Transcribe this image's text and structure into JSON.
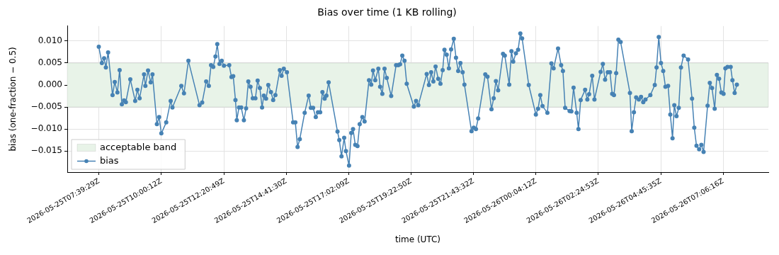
{
  "chart_data": {
    "type": "line",
    "title": "Bias over time (1 KB rolling)",
    "xlabel": "time (UTC)",
    "ylabel": "bias (one-fraction − 0.5)",
    "x": [
      "2026-05-25T07:39",
      "2026-05-25T07:46",
      "2026-05-25T07:51",
      "2026-05-25T07:55",
      "2026-05-25T08:00",
      "2026-05-25T08:10",
      "2026-05-25T08:15",
      "2026-05-25T08:21",
      "2026-05-25T08:26",
      "2026-05-25T08:31",
      "2026-05-25T08:36",
      "2026-05-25T08:40",
      "2026-05-25T08:50",
      "2026-05-25T09:01",
      "2026-05-25T09:06",
      "2026-05-25T09:11",
      "2026-05-25T09:21",
      "2026-05-25T09:24",
      "2026-05-25T09:30",
      "2026-05-25T09:36",
      "2026-05-25T09:40",
      "2026-05-25T09:50",
      "2026-05-25T09:55",
      "2026-05-25T10:00",
      "2026-05-25T10:11",
      "2026-05-25T10:21",
      "2026-05-25T10:25",
      "2026-05-25T10:45",
      "2026-05-25T10:51",
      "2026-05-25T11:01",
      "2026-05-25T11:26",
      "2026-05-25T11:32",
      "2026-05-25T11:41",
      "2026-05-25T11:47",
      "2026-05-25T11:52",
      "2026-05-25T11:57",
      "2026-05-25T12:02",
      "2026-05-25T12:06",
      "2026-05-25T12:11",
      "2026-05-25T12:16",
      "2026-05-25T12:21",
      "2026-05-25T12:33",
      "2026-05-25T12:38",
      "2026-05-25T12:42",
      "2026-05-25T12:47",
      "2026-05-25T12:50",
      "2026-05-25T12:55",
      "2026-05-25T13:00",
      "2026-05-25T13:06",
      "2026-05-25T13:11",
      "2026-05-25T13:16",
      "2026-05-25T13:21",
      "2026-05-25T13:26",
      "2026-05-25T13:32",
      "2026-05-25T13:37",
      "2026-05-25T13:42",
      "2026-05-25T13:47",
      "2026-05-25T13:51",
      "2026-05-25T13:56",
      "2026-05-25T14:01",
      "2026-05-25T14:07",
      "2026-05-25T14:12",
      "2026-05-25T14:17",
      "2026-05-25T14:27",
      "2026-05-25T14:31",
      "2026-05-25T14:36",
      "2026-05-25T14:43",
      "2026-05-25T14:57",
      "2026-05-25T15:02",
      "2026-05-25T15:07",
      "2026-05-25T15:12",
      "2026-05-25T15:23",
      "2026-05-25T15:32",
      "2026-05-25T15:37",
      "2026-05-25T15:42",
      "2026-05-25T15:48",
      "2026-05-25T15:53",
      "2026-05-25T15:58",
      "2026-05-25T16:03",
      "2026-05-25T16:08",
      "2026-05-25T16:12",
      "2026-05-25T16:17",
      "2026-05-25T16:37",
      "2026-05-25T16:41",
      "2026-05-25T16:46",
      "2026-05-25T16:52",
      "2026-05-25T16:56",
      "2026-05-25T17:03",
      "2026-05-25T17:08",
      "2026-05-25T17:12",
      "2026-05-25T17:17",
      "2026-05-25T17:22",
      "2026-05-25T17:27",
      "2026-05-25T17:33",
      "2026-05-25T17:38",
      "2026-05-25T17:48",
      "2026-05-25T17:53",
      "2026-05-25T17:57",
      "2026-05-25T18:02",
      "2026-05-25T18:09",
      "2026-05-25T18:13",
      "2026-05-25T18:18",
      "2026-05-25T18:23",
      "2026-05-25T18:28",
      "2026-05-25T18:38",
      "2026-05-25T18:49",
      "2026-05-25T18:54",
      "2026-05-25T18:58",
      "2026-05-25T19:03",
      "2026-05-25T19:08",
      "2026-05-25T19:13",
      "2026-05-25T19:29",
      "2026-05-25T19:34",
      "2026-05-25T19:39",
      "2026-05-25T19:58",
      "2026-05-25T20:03",
      "2026-05-25T20:08",
      "2026-05-25T20:13",
      "2026-05-25T20:18",
      "2026-05-25T20:24",
      "2026-05-25T20:29",
      "2026-05-25T20:34",
      "2026-05-25T20:38",
      "2026-05-25T20:43",
      "2026-05-25T20:48",
      "2026-05-25T20:53",
      "2026-05-25T20:59",
      "2026-05-25T21:04",
      "2026-05-25T21:09",
      "2026-05-25T21:14",
      "2026-05-25T21:19",
      "2026-05-25T21:23",
      "2026-05-25T21:39",
      "2026-05-25T21:44",
      "2026-05-25T21:49",
      "2026-05-25T21:54",
      "2026-05-25T22:10",
      "2026-05-25T22:15",
      "2026-05-25T22:24",
      "2026-05-25T22:29",
      "2026-05-25T22:34",
      "2026-05-25T22:39",
      "2026-05-25T22:50",
      "2026-05-25T22:54",
      "2026-05-25T23:04",
      "2026-05-25T23:09",
      "2026-05-25T23:13",
      "2026-05-25T23:19",
      "2026-05-25T23:24",
      "2026-05-25T23:29",
      "2026-05-25T23:33",
      "2026-05-25T23:48",
      "2026-05-26T00:04",
      "2026-05-26T00:09",
      "2026-05-26T00:14",
      "2026-05-26T00:19",
      "2026-05-26T00:30",
      "2026-05-26T00:39",
      "2026-05-26T00:44",
      "2026-05-26T00:54",
      "2026-05-26T01:01",
      "2026-05-26T01:05",
      "2026-05-26T01:10",
      "2026-05-26T01:20",
      "2026-05-26T01:24",
      "2026-05-26T01:29",
      "2026-05-26T01:36",
      "2026-05-26T01:40",
      "2026-05-26T01:45",
      "2026-05-26T01:55",
      "2026-05-26T02:00",
      "2026-05-26T02:04",
      "2026-05-26T02:11",
      "2026-05-26T02:16",
      "2026-05-26T02:30",
      "2026-05-26T02:35",
      "2026-05-26T02:40",
      "2026-05-26T02:46",
      "2026-05-26T02:51",
      "2026-05-26T02:56",
      "2026-05-26T03:00",
      "2026-05-26T03:05",
      "2026-05-26T03:10",
      "2026-05-26T03:15",
      "2026-05-26T03:36",
      "2026-05-26T03:40",
      "2026-05-26T03:45",
      "2026-05-26T03:50",
      "2026-05-26T03:56",
      "2026-05-26T04:01",
      "2026-05-26T04:06",
      "2026-05-26T04:11",
      "2026-05-26T04:22",
      "2026-05-26T04:32",
      "2026-05-26T04:36",
      "2026-05-26T04:41",
      "2026-05-26T04:46",
      "2026-05-26T04:51",
      "2026-05-26T04:56",
      "2026-05-26T05:02",
      "2026-05-26T05:07",
      "2026-05-26T05:12",
      "2026-05-26T05:16",
      "2026-05-26T05:21",
      "2026-05-26T05:26",
      "2026-05-26T05:31",
      "2026-05-26T05:37",
      "2026-05-26T05:47",
      "2026-05-26T05:56",
      "2026-05-26T06:01",
      "2026-05-26T06:06",
      "2026-05-26T06:12",
      "2026-05-26T06:17",
      "2026-05-26T06:22",
      "2026-05-26T06:31",
      "2026-05-26T06:36",
      "2026-05-26T06:41",
      "2026-05-26T06:47",
      "2026-05-26T06:52",
      "2026-05-26T06:57",
      "2026-05-26T07:02",
      "2026-05-26T07:07",
      "2026-05-26T07:11",
      "2026-05-26T07:16",
      "2026-05-26T07:23",
      "2026-05-26T07:27",
      "2026-05-26T07:32",
      "2026-05-26T07:37"
    ],
    "series": [
      {
        "name": "bias",
        "color": "#4682b4",
        "values": [
          0.0087,
          0.005,
          0.0061,
          0.004,
          0.0074,
          -0.0023,
          0.0007,
          -0.0017,
          0.0034,
          -0.0044,
          -0.0035,
          -0.0039,
          0.0013,
          -0.0036,
          -0.0011,
          -0.003,
          0.0024,
          -0.0002,
          0.0033,
          0.0006,
          0.0024,
          -0.0089,
          -0.0073,
          -0.011,
          -0.0085,
          -0.0036,
          -0.0051,
          -0.0002,
          -0.0019,
          0.0055,
          -0.0046,
          -0.004,
          0.0008,
          -0.0002,
          0.0045,
          0.0041,
          0.0065,
          0.0093,
          0.0048,
          0.0055,
          0.0044,
          0.0045,
          0.0018,
          0.002,
          -0.0034,
          -0.008,
          -0.0051,
          -0.0051,
          -0.008,
          -0.0053,
          0.0008,
          -0.0004,
          -0.003,
          -0.003,
          0.001,
          -0.0007,
          -0.0051,
          -0.0024,
          -0.0031,
          0.0,
          -0.0016,
          -0.0034,
          -0.0023,
          0.0034,
          0.0021,
          0.0037,
          0.0029,
          -0.0085,
          -0.0085,
          -0.0141,
          -0.0123,
          -0.0063,
          -0.0024,
          -0.0052,
          -0.0052,
          -0.0073,
          -0.0062,
          -0.0062,
          -0.0016,
          -0.0031,
          -0.0024,
          0.0006,
          -0.0106,
          -0.0125,
          -0.0162,
          -0.012,
          -0.015,
          -0.0183,
          -0.0109,
          -0.01,
          -0.0136,
          -0.0139,
          -0.0089,
          -0.0073,
          -0.0083,
          0.0011,
          0.0001,
          0.0033,
          0.0011,
          0.0037,
          -0.0004,
          -0.002,
          0.0037,
          0.0016,
          -0.0025,
          0.0045,
          0.0045,
          0.0047,
          0.0067,
          0.0055,
          0.0003,
          -0.0049,
          -0.0036,
          -0.0046,
          0.0025,
          0.0,
          0.0029,
          0.0008,
          0.0042,
          0.0014,
          0.0003,
          0.0034,
          0.008,
          0.0069,
          0.0038,
          0.0081,
          0.0105,
          0.0062,
          0.0032,
          0.005,
          0.0029,
          0.0001,
          -0.0105,
          -0.0097,
          -0.01,
          -0.0076,
          0.0024,
          0.0019,
          -0.0055,
          -0.003,
          0.0009,
          -0.0012,
          0.0071,
          0.0067,
          0.0001,
          0.0077,
          0.0053,
          0.0072,
          0.008,
          0.0117,
          0.0106,
          0.0,
          -0.0067,
          -0.0054,
          -0.0023,
          -0.0048,
          -0.0063,
          0.0049,
          0.0038,
          0.0083,
          0.0045,
          0.0032,
          -0.0052,
          -0.0059,
          -0.006,
          -0.0006,
          -0.0063,
          -0.01,
          -0.0034,
          -0.0011,
          -0.0033,
          -0.0021,
          0.0021,
          -0.0033,
          0.003,
          0.0048,
          0.0012,
          0.0029,
          0.0029,
          -0.002,
          -0.0023,
          0.0027,
          0.0103,
          0.0098,
          -0.0018,
          -0.0105,
          -0.0062,
          -0.0028,
          -0.0033,
          -0.0027,
          -0.0039,
          -0.0033,
          -0.0023,
          0.0,
          0.004,
          0.0109,
          0.005,
          0.0032,
          -0.0004,
          -0.0002,
          -0.0067,
          -0.0121,
          -0.0046,
          -0.0071,
          -0.0052,
          0.004,
          0.0067,
          0.0058,
          -0.0031,
          -0.0097,
          -0.0138,
          -0.0146,
          -0.0136,
          -0.0152,
          -0.0047,
          0.0005,
          -0.0007,
          -0.0054,
          0.0023,
          0.0014,
          -0.0017,
          -0.002,
          0.0038,
          0.0041,
          0.0041,
          0.0011,
          -0.0018,
          0.0001
        ]
      }
    ],
    "xlim": [
      "2026-05-25T06:28",
      "2026-05-26T08:48"
    ],
    "xticks": [
      {
        "value": "2026-05-25T07:39:29",
        "label": "2026-05-25T07:39:29Z"
      },
      {
        "value": "2026-05-25T10:00:12",
        "label": "2026-05-25T10:00:12Z"
      },
      {
        "value": "2026-05-25T12:20:49",
        "label": "2026-05-25T12:20:49Z"
      },
      {
        "value": "2026-05-25T14:41:30",
        "label": "2026-05-25T14:41:30Z"
      },
      {
        "value": "2026-05-25T17:02:09",
        "label": "2026-05-25T17:02:09Z"
      },
      {
        "value": "2026-05-25T19:22:50",
        "label": "2026-05-25T19:22:50Z"
      },
      {
        "value": "2026-05-25T21:43:32",
        "label": "2026-05-25T21:43:32Z"
      },
      {
        "value": "2026-05-26T00:04:12",
        "label": "2026-05-26T00:04:12Z"
      },
      {
        "value": "2026-05-26T02:24:53",
        "label": "2026-05-26T02:24:53Z"
      },
      {
        "value": "2026-05-26T04:45:35",
        "label": "2026-05-26T04:45:35Z"
      },
      {
        "value": "2026-05-26T07:06:16",
        "label": "2026-05-26T07:06:16Z"
      }
    ],
    "ylim": [
      -0.0198,
      0.0134
    ],
    "yticks": [
      {
        "value": -0.015,
        "label": "−0.015"
      },
      {
        "value": -0.01,
        "label": "−0.010"
      },
      {
        "value": -0.005,
        "label": "−0.005"
      },
      {
        "value": 0,
        "label": "0.000"
      },
      {
        "value": 0.005,
        "label": "0.005"
      },
      {
        "value": 0.01,
        "label": "0.010"
      }
    ],
    "bands": [
      {
        "axis": "y",
        "from": -0.005,
        "to": 0.005,
        "label": "acceptable band",
        "color": "#e8f3e8"
      }
    ],
    "grid": true,
    "legend": "bottom left",
    "marker": "circle",
    "line_style": "solid"
  }
}
